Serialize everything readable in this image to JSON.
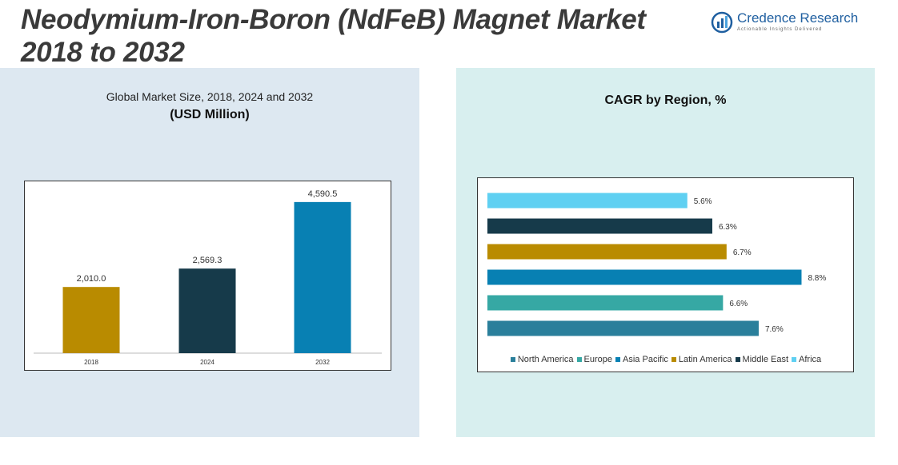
{
  "header": {
    "title": "Neodymium-Iron-Boron (NdFeB) Magnet Market 2018 to 2032",
    "logo_name": "Credence Research",
    "logo_tagline": "Actionable Insights Delivered"
  },
  "colors": {
    "gold": "#b98b00",
    "navy": "#163a4a",
    "blue": "#0880b3",
    "teal_blue": "#2a7f9b",
    "teal": "#36a8a4",
    "light_blue": "#5fd0f2"
  },
  "chart_data": [
    {
      "type": "bar",
      "title": "Global Market Size, 2018, 2024 and 2032",
      "subtitle": "(USD Million)",
      "categories": [
        "2018",
        "2024",
        "2032"
      ],
      "values": [
        2010.0,
        2569.3,
        4590.5
      ],
      "value_labels": [
        "2,010.0",
        "2,569.3",
        "4,590.5"
      ],
      "bar_colors": [
        "#b98b00",
        "#163a4a",
        "#0880b3"
      ],
      "ylim": [
        0,
        5000
      ]
    },
    {
      "type": "bar",
      "orientation": "horizontal",
      "title": "CAGR by Region, %",
      "categories": [
        "Africa",
        "Middle East",
        "Latin America",
        "Asia Pacific",
        "Europe",
        "North America"
      ],
      "values": [
        5.6,
        6.3,
        6.7,
        8.8,
        6.6,
        7.6
      ],
      "value_labels": [
        "5.6%",
        "6.3%",
        "6.7%",
        "8.8%",
        "6.6%",
        "7.6%"
      ],
      "bar_colors": [
        "#5fd0f2",
        "#163a4a",
        "#b98b00",
        "#0880b3",
        "#36a8a4",
        "#2a7f9b"
      ],
      "legend": [
        {
          "label": "North America",
          "color": "#2a7f9b"
        },
        {
          "label": "Europe",
          "color": "#36a8a4"
        },
        {
          "label": "Asia Pacific",
          "color": "#0880b3"
        },
        {
          "label": "Latin America",
          "color": "#b98b00"
        },
        {
          "label": "Middle East",
          "color": "#163a4a"
        },
        {
          "label": "Africa",
          "color": "#5fd0f2"
        }
      ],
      "legend_position": "bottom",
      "xlim": [
        0,
        10
      ]
    }
  ]
}
